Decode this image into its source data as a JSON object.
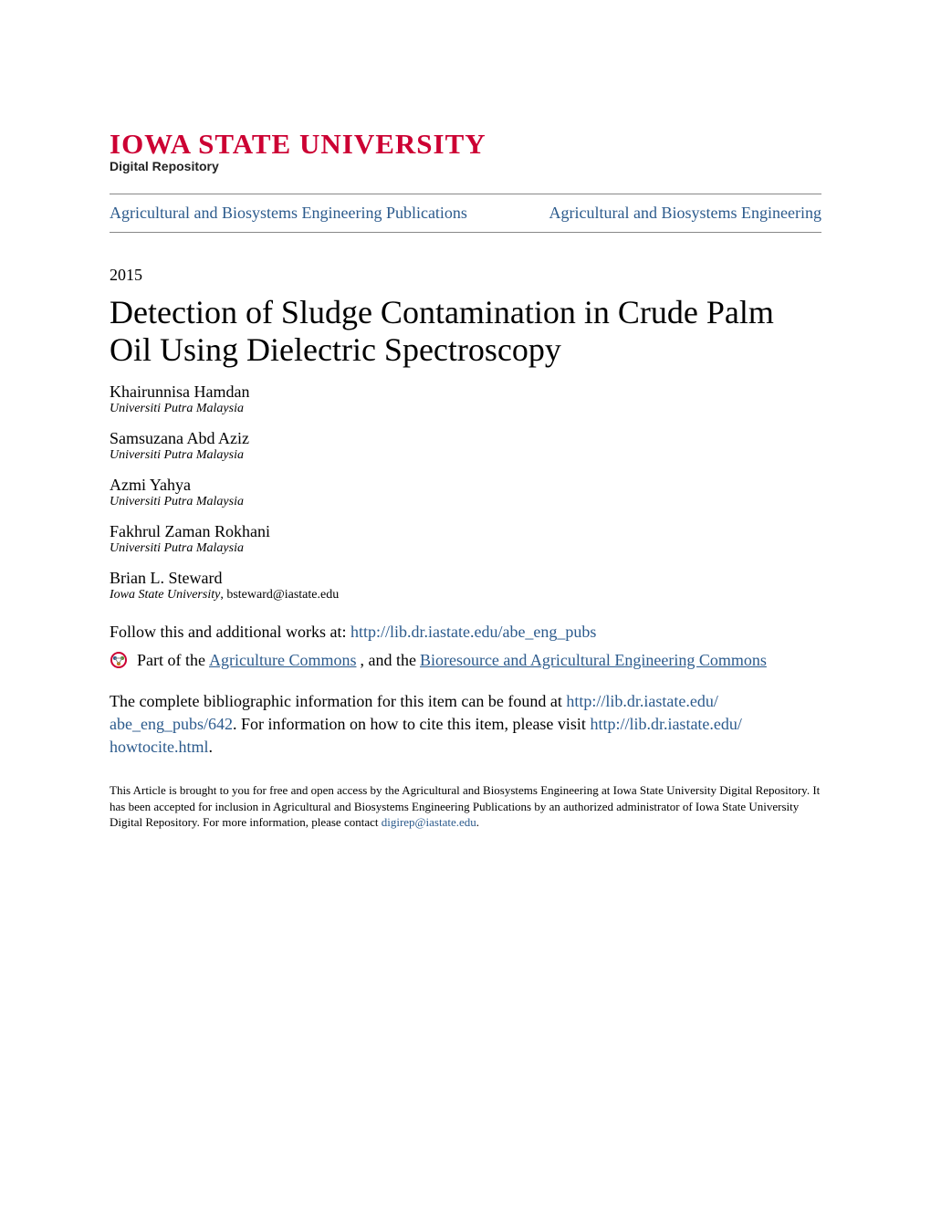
{
  "logo": {
    "main": "Iowa State University",
    "sub": "Digital Repository",
    "main_color": "#cc0033"
  },
  "header": {
    "left": "Agricultural and Biosystems Engineering Publications",
    "right": "Agricultural and Biosystems Engineering"
  },
  "year": "2015",
  "title": "Detection of Sludge Contamination in Crude Palm Oil Using Dielectric Spectroscopy",
  "authors": [
    {
      "name": "Khairunnisa Hamdan",
      "affil": "Universiti Putra Malaysia",
      "email": ""
    },
    {
      "name": "Samsuzana Abd Aziz",
      "affil": "Universiti Putra Malaysia",
      "email": ""
    },
    {
      "name": "Azmi Yahya",
      "affil": "Universiti Putra Malaysia",
      "email": ""
    },
    {
      "name": "Fakhrul Zaman Rokhani",
      "affil": "Universiti Putra Malaysia",
      "email": ""
    },
    {
      "name": "Brian L. Steward",
      "affil": "Iowa State University",
      "email": ", bsteward@iastate.edu"
    }
  ],
  "follow": {
    "prefix": "Follow this and additional works at: ",
    "url": "http://lib.dr.iastate.edu/abe_eng_pubs"
  },
  "commons": {
    "prefix": "Part of the ",
    "link1": "Agriculture Commons",
    "mid": ", and the ",
    "link2": "Bioresource and Agricultural Engineering Commons"
  },
  "biblio": {
    "t1": "The complete bibliographic information for this item can be found at ",
    "url1a": "http://lib.dr.iastate.edu/",
    "url1b": "abe_eng_pubs/642",
    "t2": ". For information on how to cite this item, please visit ",
    "url2a": "http://lib.dr.iastate.edu/",
    "url2b": "howtocite.html",
    "t3": "."
  },
  "footer": {
    "t1": "This Article is brought to you for free and open access by the Agricultural and Biosystems Engineering at Iowa State University Digital Repository. It has been accepted for inclusion in Agricultural and Biosystems Engineering Publications by an authorized administrator of Iowa State University Digital Repository. For more information, please contact ",
    "email": "digirep@iastate.edu",
    "t2": "."
  },
  "colors": {
    "link": "#2b5a8c",
    "brand": "#cc0033",
    "text": "#000000",
    "rule": "#888888"
  }
}
